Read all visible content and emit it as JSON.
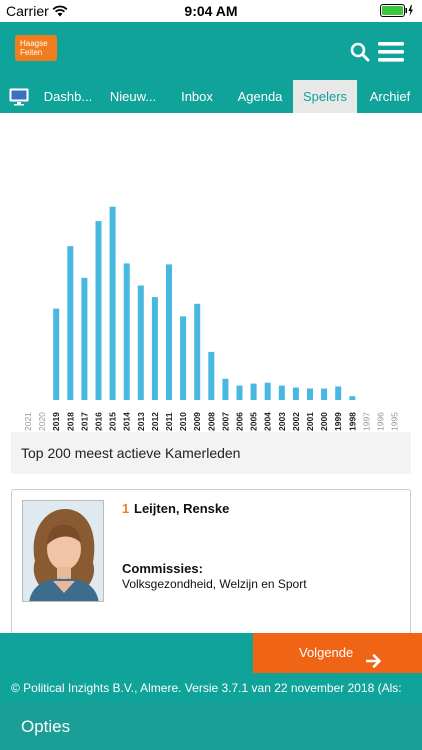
{
  "status": {
    "carrier": "Carrier",
    "time": "9:04 AM"
  },
  "header": {
    "logo_line1": "Haagse",
    "logo_line2": "Feiten",
    "icons": [
      "search-icon",
      "hamburger-menu-icon"
    ]
  },
  "nav": {
    "icon": "monitor-icon",
    "tabs": [
      {
        "label": "Dashb..."
      },
      {
        "label": "Nieuw..."
      },
      {
        "label": "Inbox"
      },
      {
        "label": "Agenda"
      },
      {
        "label": "Spelers",
        "active": true
      },
      {
        "label": "Archief"
      }
    ]
  },
  "chart_data": {
    "type": "bar",
    "categories": [
      "2021",
      "2020",
      "2019",
      "2018",
      "2017",
      "2016",
      "2015",
      "2014",
      "2013",
      "2012",
      "2011",
      "2010",
      "2009",
      "2008",
      "2007",
      "2006",
      "2005",
      "2004",
      "2003",
      "2002",
      "2001",
      "2000",
      "1999",
      "1998",
      "1997",
      "1996",
      "1995"
    ],
    "values": [
      0,
      0,
      95,
      160,
      127,
      186,
      201,
      142,
      119,
      107,
      141,
      87,
      100,
      50,
      22,
      15,
      17,
      18,
      15,
      13,
      12,
      12,
      14,
      4,
      0,
      0,
      0
    ],
    "title": "",
    "xlabel": "",
    "ylabel": "",
    "ylim": [
      0,
      210
    ],
    "bar_color": "#48b8e0",
    "grid": false
  },
  "list": {
    "title": "Top 200 meest actieve Kamerleden"
  },
  "card": {
    "rank": "1",
    "name": "Leijten, Renske",
    "commissions_label": "Commissies:",
    "commissions_value": "Volksgezondheid, Welzijn en Sport"
  },
  "pager": {
    "next_label": "Volgende"
  },
  "footer": {
    "text": "© Political Inzights B.V., Almere. Versie 3.7.1 van 22 november 2018 (Als:"
  },
  "options": {
    "label": "Opties"
  },
  "colors": {
    "teal": "#10a39a",
    "orange": "#f06415",
    "bar": "#48b8e0"
  }
}
